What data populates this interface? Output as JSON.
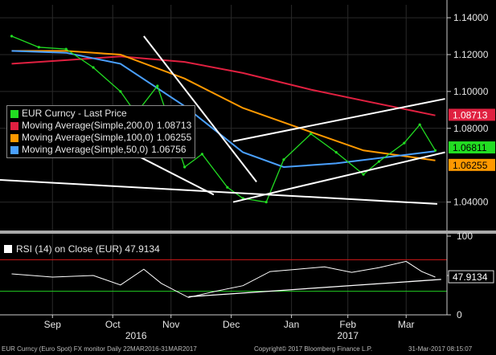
{
  "chart_data": [
    {
      "type": "line",
      "panel": "price",
      "title": "EUR Curncy",
      "legend_placement": "top-left",
      "series": [
        {
          "name": "EUR Curncy - Last Price",
          "color": "#22dd22",
          "x": [
            "2016-08-25",
            "2016-09-08",
            "2016-09-22",
            "2016-10-06",
            "2016-10-20",
            "2016-10-28",
            "2016-11-08",
            "2016-11-22",
            "2016-12-01",
            "2016-12-14",
            "2016-12-22",
            "2017-01-03",
            "2017-01-12",
            "2017-01-26",
            "2017-02-08",
            "2017-02-22",
            "2017-03-02",
            "2017-03-15",
            "2017-03-23",
            "2017-03-31"
          ],
          "values": [
            1.13,
            1.124,
            1.123,
            1.113,
            1.1,
            1.088,
            1.103,
            1.059,
            1.066,
            1.048,
            1.042,
            1.04,
            1.063,
            1.077,
            1.067,
            1.055,
            1.062,
            1.072,
            1.082,
            1.068
          ]
        },
        {
          "name": "Moving Average(Simple,200,0)",
          "color": "#e02040",
          "last": "1.08713",
          "x": [
            "2016-08-25",
            "2016-09-22",
            "2016-10-20",
            "2016-11-22",
            "2016-12-22",
            "2017-01-26",
            "2017-02-22",
            "2017-03-31"
          ],
          "values": [
            1.115,
            1.117,
            1.119,
            1.116,
            1.11,
            1.101,
            1.095,
            1.087
          ]
        },
        {
          "name": "Moving Average(Simple,100,0)",
          "color": "#ff9900",
          "last": "1.06255",
          "x": [
            "2016-08-25",
            "2016-09-22",
            "2016-10-20",
            "2016-11-22",
            "2016-12-22",
            "2017-01-26",
            "2017-02-22",
            "2017-03-31"
          ],
          "values": [
            1.122,
            1.122,
            1.12,
            1.107,
            1.091,
            1.078,
            1.068,
            1.0626
          ]
        },
        {
          "name": "Moving Average(Simple,50,0)",
          "color": "#4aa0ff",
          "last": "1.06756",
          "x": [
            "2016-08-25",
            "2016-09-22",
            "2016-10-20",
            "2016-11-22",
            "2016-12-22",
            "2017-01-12",
            "2017-02-08",
            "2017-03-31"
          ],
          "values": [
            1.122,
            1.121,
            1.115,
            1.092,
            1.067,
            1.059,
            1.061,
            1.0676
          ]
        }
      ],
      "trendlines": [
        {
          "x": [
            "2016-11-01",
            "2016-12-29"
          ],
          "values": [
            1.13,
            1.051
          ]
        },
        {
          "x": [
            "2016-10-29",
            "2016-12-07"
          ],
          "values": [
            1.065,
            1.044
          ]
        },
        {
          "x": [
            "2016-12-17",
            "2017-04-05"
          ],
          "values": [
            1.073,
            1.096
          ]
        },
        {
          "x": [
            "2016-12-17",
            "2017-04-05"
          ],
          "values": [
            1.04,
            1.067
          ]
        },
        {
          "x": [
            "2016-08-19",
            "2017-04-01"
          ],
          "values": [
            1.052,
            1.039
          ]
        }
      ],
      "ylim": [
        1.025,
        1.147
      ],
      "y_ticks": [
        "1.14000",
        "1.12000",
        "1.10000",
        "1.08000",
        "1.04000"
      ],
      "y_tick_values": [
        1.14,
        1.12,
        1.1,
        1.08,
        1.04
      ],
      "value_tags": [
        {
          "label": "1.08713",
          "value": 1.08713,
          "bg": "#e02040",
          "fg": "#ffffff"
        },
        {
          "label": "1.06811",
          "value": 1.06811,
          "bg": "#22dd22",
          "fg": "#000000"
        },
        {
          "label": "1.06255",
          "value": 1.06255,
          "bg": "#ff9900",
          "fg": "#000000"
        }
      ],
      "grid": true
    },
    {
      "type": "line",
      "panel": "rsi",
      "series": [
        {
          "name": "RSI (14) on Close (EUR)",
          "last": "47.9134",
          "color": "#ffffff",
          "x": [
            "2016-08-25",
            "2016-09-15",
            "2016-10-06",
            "2016-10-20",
            "2016-11-01",
            "2016-11-10",
            "2016-11-24",
            "2016-12-08",
            "2016-12-22",
            "2017-01-05",
            "2017-01-19",
            "2017-02-02",
            "2017-02-16",
            "2017-03-02",
            "2017-03-16",
            "2017-03-24",
            "2017-03-31"
          ],
          "values": [
            52,
            48,
            50,
            38,
            58,
            40,
            22,
            30,
            37,
            55,
            58,
            61,
            54,
            60,
            68,
            55,
            48
          ]
        }
      ],
      "levels": [
        {
          "value": 70,
          "color": "#d01818"
        },
        {
          "value": 30,
          "color": "#22cc22"
        }
      ],
      "trendline": {
        "x": [
          "2016-11-24",
          "2017-04-03"
        ],
        "values": [
          23,
          45
        ]
      },
      "ylim": [
        0,
        100
      ],
      "y_ticks": [
        "100",
        "50",
        "0"
      ],
      "y_tick_values": [
        100,
        50,
        0
      ],
      "value_tag": {
        "label": "47.9134",
        "value": 47.9134
      }
    }
  ],
  "x_axis": {
    "months": [
      {
        "label": "Sep",
        "date": "2016-09-15"
      },
      {
        "label": "Oct",
        "date": "2016-10-16"
      },
      {
        "label": "Nov",
        "date": "2016-11-15"
      },
      {
        "label": "Dec",
        "date": "2016-12-16"
      },
      {
        "label": "Jan",
        "date": "2017-01-16"
      },
      {
        "label": "Feb",
        "date": "2017-02-14"
      },
      {
        "label": "Mar",
        "date": "2017-03-16"
      }
    ],
    "years": [
      {
        "label": "2016",
        "date": "2016-10-28"
      },
      {
        "label": "2017",
        "date": "2017-02-14"
      }
    ]
  },
  "legend": {
    "rows": [
      {
        "label": "EUR Curncy - Last Price",
        "value": "",
        "color": "#22dd22"
      },
      {
        "label": "Moving Average(Simple,200,0)",
        "value": "1.08713",
        "color": "#e02040"
      },
      {
        "label": "Moving Average(Simple,100,0)",
        "value": "1.06255",
        "color": "#ff9900"
      },
      {
        "label": "Moving Average(Simple,50,0)",
        "value": "1.06756",
        "color": "#4aa0ff"
      }
    ]
  },
  "rsi_legend": {
    "label": "RSI (14) on Close (EUR)",
    "value": "47.9134"
  },
  "footer": {
    "left": "EUR Curncy (Euro Spot) FX monitor  Daily 22MAR2016-31MAR2017",
    "center": "Copyright© 2017 Bloomberg Finance L.P.",
    "right": "31-Mar-2017 08:15:07"
  },
  "colors": {
    "background": "#000000",
    "separator": "#aaaaaa",
    "grid": "#2a2a2a"
  }
}
